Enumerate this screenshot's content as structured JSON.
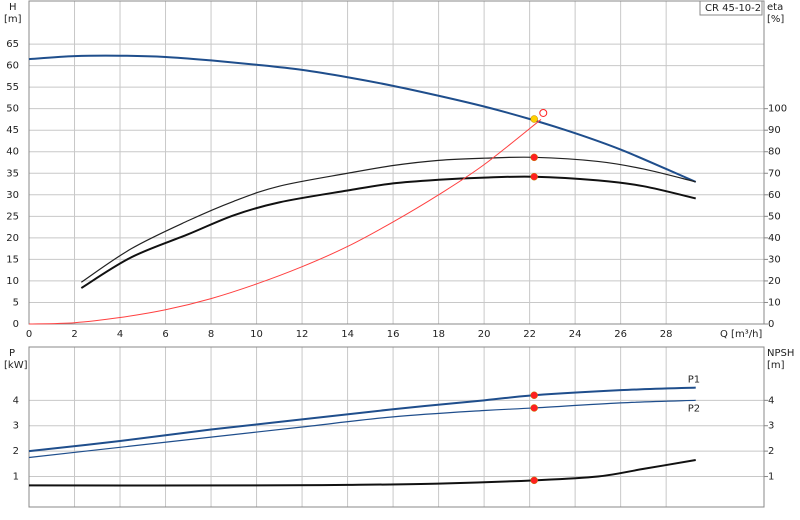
{
  "chart_data": [
    {
      "type": "line",
      "ylabel": "H",
      "yunit": "[m]",
      "y2label": "eta",
      "y2unit": "[%]",
      "xlabel": "Q [m³/h]",
      "legend_title": "CR 45-10-2",
      "xlim": [
        0,
        32.3
      ],
      "xticks": [
        0,
        2,
        4,
        6,
        8,
        10,
        12,
        14,
        16,
        18,
        20,
        22,
        24,
        26,
        28
      ],
      "xtick_labels": true,
      "ylim": [
        0,
        75
      ],
      "yticks": [
        0,
        5,
        10,
        15,
        20,
        25,
        30,
        35,
        40,
        45,
        50,
        55,
        60,
        65
      ],
      "y2lim": [
        0,
        150
      ],
      "y2ticks": [
        0,
        10,
        20,
        30,
        40,
        50,
        60,
        70,
        80,
        90,
        100
      ],
      "grid": true,
      "series": [
        {
          "color": "#1f4e8c",
          "width": 2,
          "axis": "y",
          "x": [
            0,
            2,
            4,
            6,
            8,
            10,
            12,
            14,
            16,
            18,
            20,
            22,
            24,
            26,
            28,
            29.3
          ],
          "values": [
            61.5,
            62.2,
            62.3,
            62,
            61.2,
            60.2,
            59,
            57.3,
            55.3,
            53,
            50.5,
            47.6,
            44.3,
            40.5,
            36,
            33
          ]
        },
        {
          "color": "#222222",
          "width": 1.2,
          "axis": "y2",
          "x": [
            2.3,
            4.5,
            7,
            9,
            11,
            14,
            16,
            18,
            20,
            22.2,
            25,
            27,
            29.3
          ],
          "values": [
            19.4,
            35,
            48,
            57,
            64,
            70,
            73.6,
            76,
            77,
            77.4,
            75.5,
            72,
            66
          ]
        },
        {
          "color": "#111111",
          "width": 2,
          "axis": "y2",
          "x": [
            2.3,
            4.5,
            7,
            9,
            11,
            14,
            16,
            18,
            20,
            22.2,
            25,
            27,
            29.3
          ],
          "values": [
            16.7,
            31,
            41.7,
            50.5,
            56.5,
            62,
            65.3,
            67,
            68,
            68.4,
            66.7,
            64,
            58.3
          ]
        },
        {
          "color": "#ff4040",
          "width": 1,
          "axis": "y",
          "x": [
            0,
            2,
            4,
            6,
            8,
            10,
            12,
            14,
            16,
            18,
            20,
            22.5
          ],
          "values": [
            0,
            0.3,
            1.5,
            3.3,
            5.9,
            9.3,
            13.3,
            18,
            23.7,
            30,
            37,
            47.5
          ]
        }
      ],
      "points": [
        {
          "x": 22.2,
          "y": 47.6,
          "color": "#ffd000",
          "axis": "y"
        },
        {
          "x": 22.2,
          "y": 77.4,
          "color": "#ff2020",
          "axis": "y2"
        },
        {
          "x": 22.2,
          "y": 68.4,
          "color": "#ff2020",
          "axis": "y2"
        },
        {
          "x": 22.6,
          "y": 49,
          "color": "#ff2020",
          "axis": "y",
          "open": true
        }
      ]
    },
    {
      "type": "line",
      "ylabel": "P",
      "yunit": "[kW]",
      "y2label": "NPSH",
      "y2unit": "[m]",
      "xlim": [
        0,
        32.3
      ],
      "xticks": [
        0,
        2,
        4,
        6,
        8,
        10,
        12,
        14,
        16,
        18,
        20,
        22,
        24,
        26,
        28
      ],
      "xtick_labels": false,
      "ylim": [
        -0.2,
        6.1
      ],
      "yticks": [
        1,
        2,
        3,
        4
      ],
      "y2lim": [
        -0.2,
        6.1
      ],
      "y2ticks": [
        1,
        2,
        3,
        4
      ],
      "grid": true,
      "series": [
        {
          "name": "P1",
          "color": "#1f4e8c",
          "width": 2,
          "axis": "y",
          "x": [
            0,
            4,
            8,
            12,
            16,
            20,
            22.2,
            26,
            29.3
          ],
          "values": [
            2.0,
            2.4,
            2.85,
            3.25,
            3.65,
            4.0,
            4.2,
            4.4,
            4.5
          ]
        },
        {
          "name": "P2",
          "color": "#1f4e8c",
          "width": 1.2,
          "axis": "y",
          "x": [
            0,
            4,
            8,
            12,
            16,
            20,
            22.2,
            26,
            29.3
          ],
          "values": [
            1.75,
            2.15,
            2.55,
            2.95,
            3.35,
            3.6,
            3.7,
            3.9,
            4.0
          ]
        },
        {
          "color": "#111111",
          "width": 2,
          "axis": "y2",
          "x": [
            0,
            10,
            14,
            18,
            22.2,
            25,
            27,
            29.3
          ],
          "values": [
            0.65,
            0.65,
            0.67,
            0.72,
            0.85,
            1.0,
            1.3,
            1.65
          ]
        }
      ],
      "points": [
        {
          "x": 22.2,
          "y": 4.2,
          "color": "#ff2020",
          "axis": "y"
        },
        {
          "x": 22.2,
          "y": 3.7,
          "color": "#ff2020",
          "axis": "y"
        },
        {
          "x": 22.2,
          "y": 0.85,
          "color": "#ff2020",
          "axis": "y2"
        }
      ]
    }
  ]
}
